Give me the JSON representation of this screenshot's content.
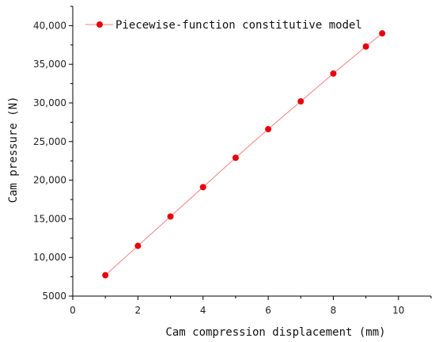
{
  "chart_data": {
    "type": "line",
    "xlabel": "Cam compression displacement (mm)",
    "ylabel": "Cam pressure (N)",
    "xlim": [
      0,
      11
    ],
    "ylim": [
      5000,
      42500
    ],
    "x_ticks": [
      0,
      2,
      4,
      6,
      8,
      10
    ],
    "x_tick_labels": [
      "0",
      "2",
      "4",
      "6",
      "8",
      "10"
    ],
    "y_ticks": [
      5000,
      10000,
      15000,
      20000,
      25000,
      30000,
      35000,
      40000
    ],
    "y_tick_labels": [
      "5000",
      "10,000",
      "15,000",
      "20,000",
      "25,000",
      "30,000",
      "35,000",
      "40,000"
    ],
    "legend_position": "top-left",
    "grid": false,
    "series": [
      {
        "name": "Piecewise-function constitutive model",
        "color": "#e8000b",
        "line_color": "#f08080",
        "marker": "circle",
        "x": [
          1,
          2,
          3,
          4,
          5,
          6,
          7,
          8,
          9,
          9.5
        ],
        "y": [
          7700,
          11500,
          15300,
          19100,
          22900,
          26600,
          30200,
          33800,
          37300,
          39000
        ]
      }
    ]
  }
}
